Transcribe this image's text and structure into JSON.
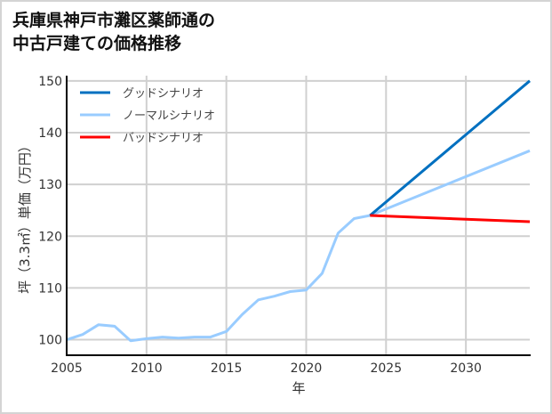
{
  "title": {
    "line1": "兵庫県神戸市灘区薬師通の",
    "line2": "中古戸建ての価格推移"
  },
  "chart_data": {
    "type": "line",
    "title": "兵庫県神戸市灘区薬師通の中古戸建ての価格推移",
    "xlabel": "年",
    "ylabel": "坪（3.3㎡）単価（万円）",
    "xlim": [
      2005,
      2034
    ],
    "ylim": [
      97,
      151
    ],
    "xticks": [
      2005,
      2010,
      2015,
      2020,
      2025,
      2030
    ],
    "yticks": [
      100,
      110,
      120,
      130,
      140,
      150
    ],
    "grid": true,
    "legend_position": "upper left",
    "series": [
      {
        "name": "グッドシナリオ",
        "color": "#0070C0",
        "x": [
          2024,
          2034
        ],
        "values": [
          124.0,
          150.0
        ]
      },
      {
        "name": "ノーマルシナリオ",
        "color": "#99CCFF",
        "x": [
          2005,
          2006,
          2007,
          2008,
          2009,
          2010,
          2011,
          2012,
          2013,
          2014,
          2015,
          2016,
          2017,
          2018,
          2019,
          2020,
          2021,
          2022,
          2023,
          2024,
          2034
        ],
        "values": [
          100.0,
          101.0,
          102.9,
          102.6,
          99.8,
          100.2,
          100.5,
          100.3,
          100.5,
          100.5,
          101.6,
          104.9,
          107.7,
          108.4,
          109.3,
          109.6,
          112.8,
          120.6,
          123.4,
          124.0,
          136.5
        ]
      },
      {
        "name": "バッドシナリオ",
        "color": "#FF0000",
        "x": [
          2024,
          2034
        ],
        "values": [
          124.0,
          122.8
        ]
      }
    ]
  }
}
